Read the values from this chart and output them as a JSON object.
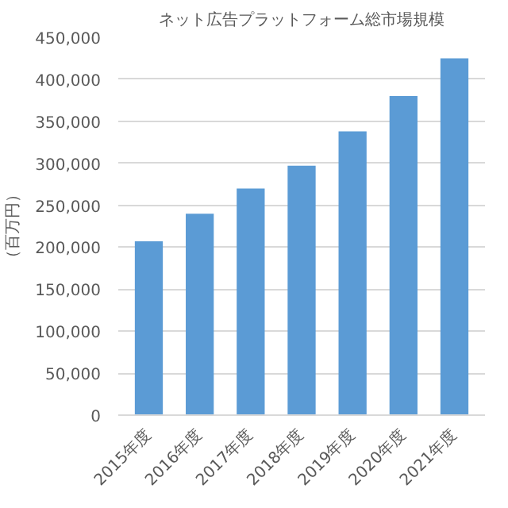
{
  "chart_data": {
    "type": "bar",
    "title": "ネット広告プラットフォーム総市場規模",
    "ylabel": "（百万円）",
    "categories": [
      "2015年度",
      "2016年度",
      "2017年度",
      "2018年度",
      "2019年度",
      "2020年度",
      "2021年度"
    ],
    "values": [
      207000,
      240000,
      270000,
      297000,
      338000,
      380000,
      425000
    ],
    "color": "#5b9bd5",
    "ylim": [
      0,
      450000
    ],
    "yticks": [
      {
        "value": 0,
        "label": "0"
      },
      {
        "value": 50000,
        "label": "50,000"
      },
      {
        "value": 100000,
        "label": "100,000"
      },
      {
        "value": 150000,
        "label": "150,000"
      },
      {
        "value": 200000,
        "label": "200,000"
      },
      {
        "value": 250000,
        "label": "250,000"
      },
      {
        "value": 300000,
        "label": "300,000"
      },
      {
        "value": 350000,
        "label": "350,000"
      },
      {
        "value": 400000,
        "label": "400,000"
      },
      {
        "value": 450000,
        "label": "450,000"
      }
    ],
    "grid": "y"
  }
}
